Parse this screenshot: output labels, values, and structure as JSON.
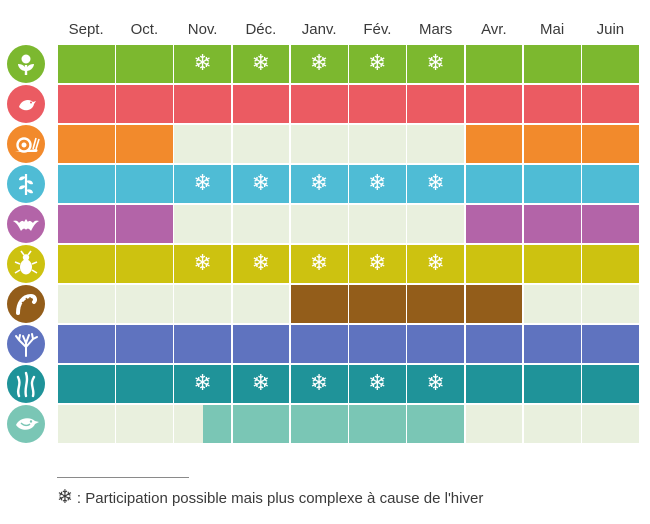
{
  "months": [
    "Sept.",
    "Oct.",
    "Nov.",
    "Déc.",
    "Janv.",
    "Fév.",
    "Mars",
    "Avr.",
    "Mai",
    "Juin"
  ],
  "snow_glyph": "❄",
  "light_color": "#e9f0de",
  "rows": [
    {
      "icon": "flower-icon",
      "color": "#7cb82f",
      "start": 0,
      "end": 10,
      "snow": [
        2,
        3,
        4,
        5,
        6
      ]
    },
    {
      "icon": "bird-icon",
      "color": "#eb5b62",
      "start": 0,
      "end": 10,
      "snow": []
    },
    {
      "icon": "snail-icon",
      "color": "#f28a2c",
      "segments": [
        [
          0,
          2
        ],
        [
          7,
          10
        ]
      ],
      "snow": []
    },
    {
      "icon": "plant-icon",
      "color": "#4fbcd5",
      "start": 0,
      "end": 10,
      "snow": [
        2,
        3,
        4,
        5,
        6
      ]
    },
    {
      "icon": "bat-icon",
      "color": "#b364a8",
      "segments": [
        [
          0,
          2
        ],
        [
          7,
          10
        ]
      ],
      "snow": []
    },
    {
      "icon": "insect-icon",
      "color": "#cdc210",
      "start": 0,
      "end": 10,
      "snow": [
        2,
        3,
        4,
        5,
        6
      ]
    },
    {
      "icon": "worm-icon",
      "color": "#935d1a",
      "segments": [
        [
          4,
          8
        ]
      ],
      "snow": []
    },
    {
      "icon": "coral-icon",
      "color": "#5f73bf",
      "start": 0,
      "end": 10,
      "snow": []
    },
    {
      "icon": "seaweed-icon",
      "color": "#1f9399",
      "start": 0,
      "end": 10,
      "snow": [
        2,
        3,
        4,
        5,
        6
      ]
    },
    {
      "icon": "seabird-icon",
      "color": "#7ac6b5",
      "segments": [
        [
          2.5,
          7
        ]
      ],
      "snow": []
    }
  ],
  "legend_text": ": Participation possible mais plus complexe à cause de l'hiver"
}
